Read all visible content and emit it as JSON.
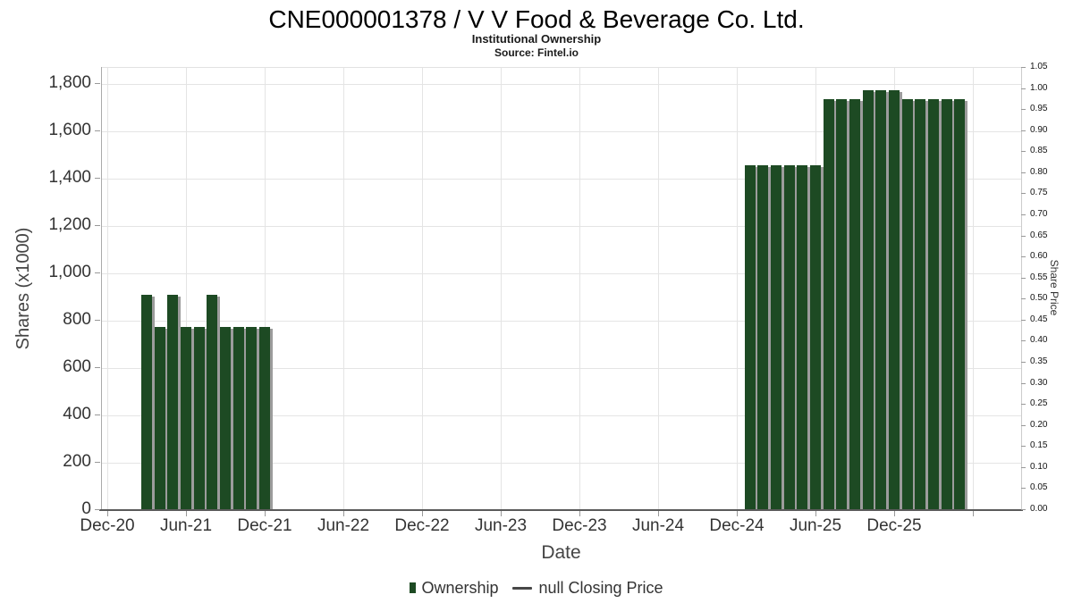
{
  "header": {
    "title": "CNE000001378 / V V Food & Beverage Co. Ltd.",
    "subtitle": "Institutional Ownership",
    "source": "Source: Fintel.io"
  },
  "legend": {
    "items": [
      {
        "label": "Ownership",
        "marker": "square-swatch",
        "color": "#1d4a23"
      },
      {
        "label": "null Closing Price",
        "marker": "dash-swatch",
        "color": "#474747"
      }
    ]
  },
  "chart_data": {
    "type": "bar",
    "title": "CNE000001378 / V V Food & Beverage Co. Ltd.",
    "subtitle": "Institutional Ownership",
    "source": "Source: Fintel.io",
    "xlabel": "Date",
    "ylabel_left": "Shares (x1000)",
    "ylabel_right": "Share Price",
    "bar_color": "#1d4a23",
    "grid": true,
    "legend_position": "bottom-center",
    "ylim_left": [
      0,
      1800
    ],
    "ylim_right": [
      0.0,
      1.05
    ],
    "x_ticks": [
      {
        "label": "Dec-20",
        "m": 0
      },
      {
        "label": "Jun-21",
        "m": 6
      },
      {
        "label": "Dec-21",
        "m": 12
      },
      {
        "label": "Jun-22",
        "m": 18
      },
      {
        "label": "Dec-22",
        "m": 24
      },
      {
        "label": "Jun-23",
        "m": 30
      },
      {
        "label": "Dec-23",
        "m": 36
      },
      {
        "label": "Jun-24",
        "m": 42
      },
      {
        "label": "Dec-24",
        "m": 48
      },
      {
        "label": "Jun-25",
        "m": 54
      },
      {
        "label": "Dec-25",
        "m": 60
      },
      {
        "label": "",
        "m": 66
      }
    ],
    "y_ticks_left": [
      {
        "label": "0",
        "v": 0
      },
      {
        "label": "200",
        "v": 200
      },
      {
        "label": "400",
        "v": 400
      },
      {
        "label": "600",
        "v": 600
      },
      {
        "label": "800",
        "v": 800
      },
      {
        "label": "1,000",
        "v": 1000
      },
      {
        "label": "1,200",
        "v": 1200
      },
      {
        "label": "1,400",
        "v": 1400
      },
      {
        "label": "1,600",
        "v": 1600
      },
      {
        "label": "1,800",
        "v": 1800
      }
    ],
    "y_ticks_right": [
      {
        "label": "0.00",
        "v": 0.0
      },
      {
        "label": "0.05",
        "v": 0.05
      },
      {
        "label": "0.10",
        "v": 0.1
      },
      {
        "label": "0.15",
        "v": 0.15
      },
      {
        "label": "0.20",
        "v": 0.2
      },
      {
        "label": "0.25",
        "v": 0.25
      },
      {
        "label": "0.30",
        "v": 0.3
      },
      {
        "label": "0.35",
        "v": 0.35
      },
      {
        "label": "0.40",
        "v": 0.4
      },
      {
        "label": "0.45",
        "v": 0.45
      },
      {
        "label": "0.50",
        "v": 0.5
      },
      {
        "label": "0.55",
        "v": 0.55
      },
      {
        "label": "0.60",
        "v": 0.6
      },
      {
        "label": "0.65",
        "v": 0.65
      },
      {
        "label": "0.70",
        "v": 0.7
      },
      {
        "label": "0.75",
        "v": 0.75
      },
      {
        "label": "0.80",
        "v": 0.8
      },
      {
        "label": "0.85",
        "v": 0.85
      },
      {
        "label": "0.90",
        "v": 0.9
      },
      {
        "label": "0.95",
        "v": 0.95
      },
      {
        "label": "1.00",
        "v": 1.0
      },
      {
        "label": "1.05",
        "v": 1.05
      }
    ],
    "series": [
      {
        "name": "Ownership",
        "units": "shares_x1000",
        "points": [
          {
            "date": "Mar-21",
            "m": 3,
            "value": 905
          },
          {
            "date": "Apr-21",
            "m": 4,
            "value": 770
          },
          {
            "date": "May-21",
            "m": 5,
            "value": 905
          },
          {
            "date": "Jun-21",
            "m": 6,
            "value": 770
          },
          {
            "date": "Jul-21",
            "m": 7,
            "value": 770
          },
          {
            "date": "Aug-21",
            "m": 8,
            "value": 905
          },
          {
            "date": "Sep-21",
            "m": 9,
            "value": 770
          },
          {
            "date": "Oct-21",
            "m": 10,
            "value": 770
          },
          {
            "date": "Nov-21",
            "m": 11,
            "value": 770
          },
          {
            "date": "Dec-21",
            "m": 12,
            "value": 770
          },
          {
            "date": "Jan-25",
            "m": 49,
            "value": 1455
          },
          {
            "date": "Feb-25",
            "m": 50,
            "value": 1455
          },
          {
            "date": "Mar-25",
            "m": 51,
            "value": 1455
          },
          {
            "date": "Apr-25",
            "m": 52,
            "value": 1455
          },
          {
            "date": "May-25",
            "m": 53,
            "value": 1455
          },
          {
            "date": "Jun-25",
            "m": 54,
            "value": 1455
          },
          {
            "date": "Jul-25",
            "m": 55,
            "value": 1735
          },
          {
            "date": "Aug-25",
            "m": 56,
            "value": 1735
          },
          {
            "date": "Sep-25",
            "m": 57,
            "value": 1735
          },
          {
            "date": "Oct-25",
            "m": 58,
            "value": 1770
          },
          {
            "date": "Nov-25",
            "m": 59,
            "value": 1770
          },
          {
            "date": "Dec-25",
            "m": 60,
            "value": 1770
          },
          {
            "date": "Jan-26",
            "m": 61,
            "value": 1735
          },
          {
            "date": "Feb-26",
            "m": 62,
            "value": 1735
          },
          {
            "date": "Mar-26",
            "m": 63,
            "value": 1735
          },
          {
            "date": "Apr-26",
            "m": 64,
            "value": 1735
          },
          {
            "date": "May-26",
            "m": 65,
            "value": 1735
          }
        ]
      },
      {
        "name": "null Closing Price",
        "points": []
      }
    ]
  }
}
